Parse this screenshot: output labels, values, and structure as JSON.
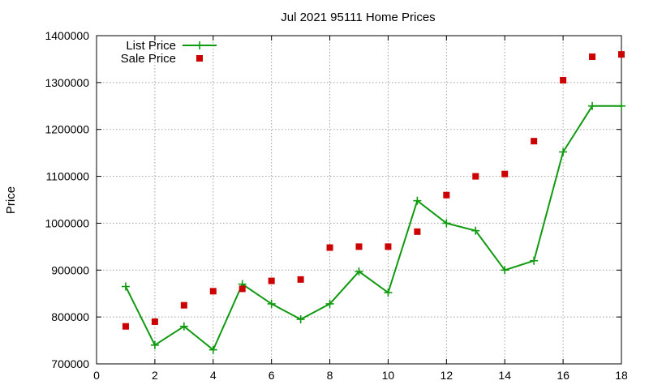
{
  "chart_data": {
    "type": "line",
    "title": "Jul 2021 95111 Home Prices",
    "xlabel": "",
    "ylabel": "Price",
    "xlim": [
      0,
      18
    ],
    "ylim": [
      700000,
      1400000
    ],
    "x_ticks": [
      "0",
      "2",
      "4",
      "6",
      "8",
      "10",
      "12",
      "14",
      "16",
      "18"
    ],
    "y_ticks": [
      "700000",
      "800000",
      "900000",
      "1000000",
      "1100000",
      "1200000",
      "1300000",
      "1400000"
    ],
    "grid": true,
    "legend_position": "top-left",
    "x": [
      1,
      2,
      3,
      4,
      5,
      6,
      7,
      8,
      9,
      10,
      11,
      12,
      13,
      14,
      15,
      16,
      17,
      18
    ],
    "series": [
      {
        "name": "List Price",
        "style": "line+cross",
        "color": "#109a10",
        "values": [
          865000,
          740000,
          780000,
          730000,
          870000,
          828000,
          795000,
          828000,
          897000,
          852000,
          1048000,
          1000000,
          984000,
          900000,
          920000,
          1152000,
          1250000,
          1250000
        ]
      },
      {
        "name": "Sale Price",
        "style": "square",
        "color": "#cc0000",
        "values": [
          780000,
          790000,
          825000,
          855000,
          860000,
          877000,
          880000,
          948000,
          950000,
          950000,
          982000,
          1060000,
          1100000,
          1105000,
          1175000,
          1305000,
          1355000,
          1360000
        ]
      }
    ]
  }
}
